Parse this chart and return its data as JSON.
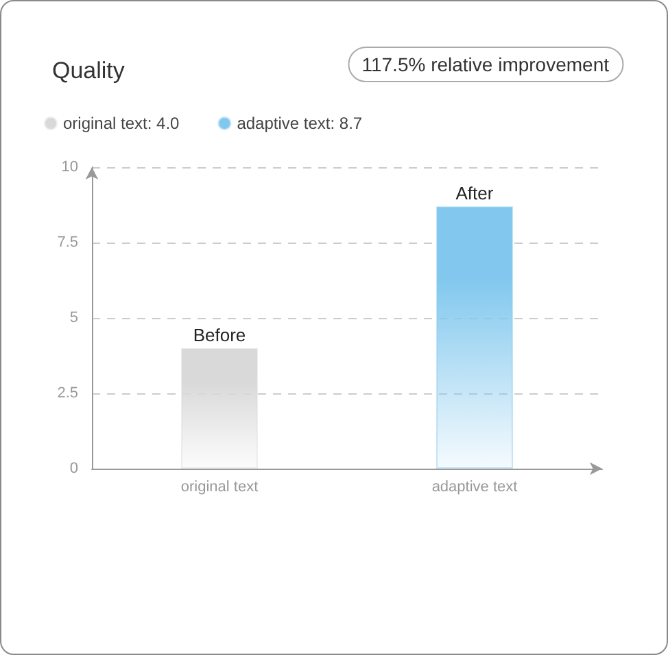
{
  "chart_data": {
    "type": "bar",
    "title": "Quality",
    "annotations": [
      "117.5% relative improvement"
    ],
    "categories": [
      "original text",
      "adaptive text"
    ],
    "series": [
      {
        "name": "original text: 4.0",
        "color": "#d9d9d9",
        "values": [
          4.0,
          null
        ],
        "value_labels": [
          "Before",
          null
        ]
      },
      {
        "name": "adaptive text: 8.7",
        "color": "#82c8ee",
        "values": [
          null,
          8.7
        ],
        "value_labels": [
          null,
          "After"
        ]
      }
    ],
    "ylim": [
      0,
      10
    ],
    "yticks": [
      0,
      2.5,
      5,
      7.5,
      10
    ],
    "grid": "y",
    "legend": "top left"
  }
}
